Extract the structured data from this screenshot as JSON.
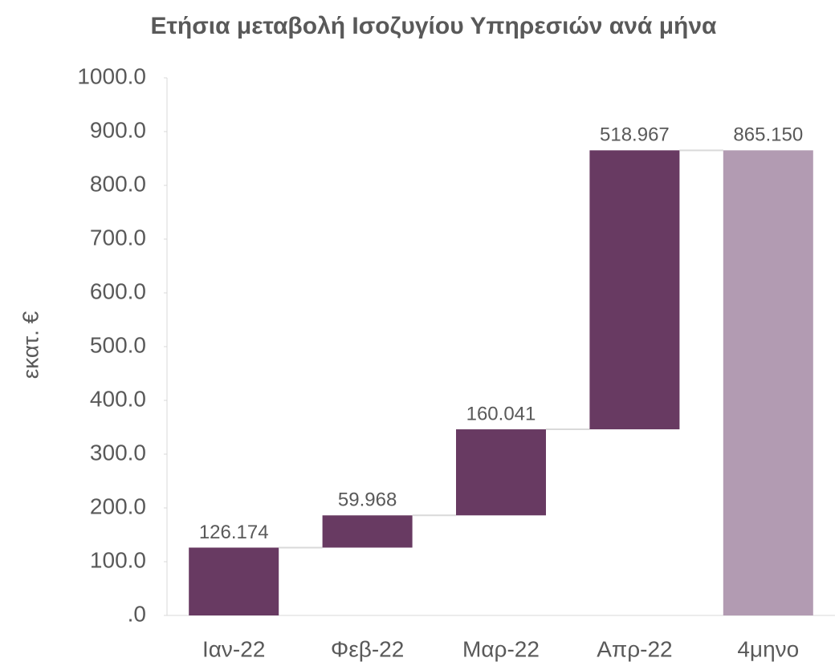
{
  "chart_data": {
    "type": "waterfall",
    "title": "Ετήσια μεταβολή Ισοζυγίου Υπηρεσιών ανά μήνα",
    "y_label": "εκατ. €",
    "categories": [
      "Ιαν-22",
      "Φεβ-22",
      "Μαρ-22",
      "Απρ-22",
      "4μηνο"
    ],
    "values": [
      126.174,
      59.968,
      160.041,
      518.967,
      865.15
    ],
    "value_labels": [
      "126.174",
      "59.968",
      "160.041",
      "518.967",
      "865.150"
    ],
    "is_total": [
      false,
      false,
      false,
      false,
      true
    ],
    "colors": [
      "#683a62",
      "#683a62",
      "#683a62",
      "#683a62",
      "#b29bb2"
    ],
    "ylim": [
      0,
      1000
    ],
    "yticks": [
      {
        "value": 0,
        "label": ".0"
      },
      {
        "value": 100,
        "label": "100.0"
      },
      {
        "value": 200,
        "label": "200.0"
      },
      {
        "value": 300,
        "label": "300.0"
      },
      {
        "value": 400,
        "label": "400.0"
      },
      {
        "value": 500,
        "label": "500.0"
      },
      {
        "value": 600,
        "label": "600.0"
      },
      {
        "value": 700,
        "label": "700.0"
      },
      {
        "value": 800,
        "label": "800.0"
      },
      {
        "value": 900,
        "label": "900.0"
      },
      {
        "value": 1000,
        "label": "1000.0"
      }
    ]
  }
}
